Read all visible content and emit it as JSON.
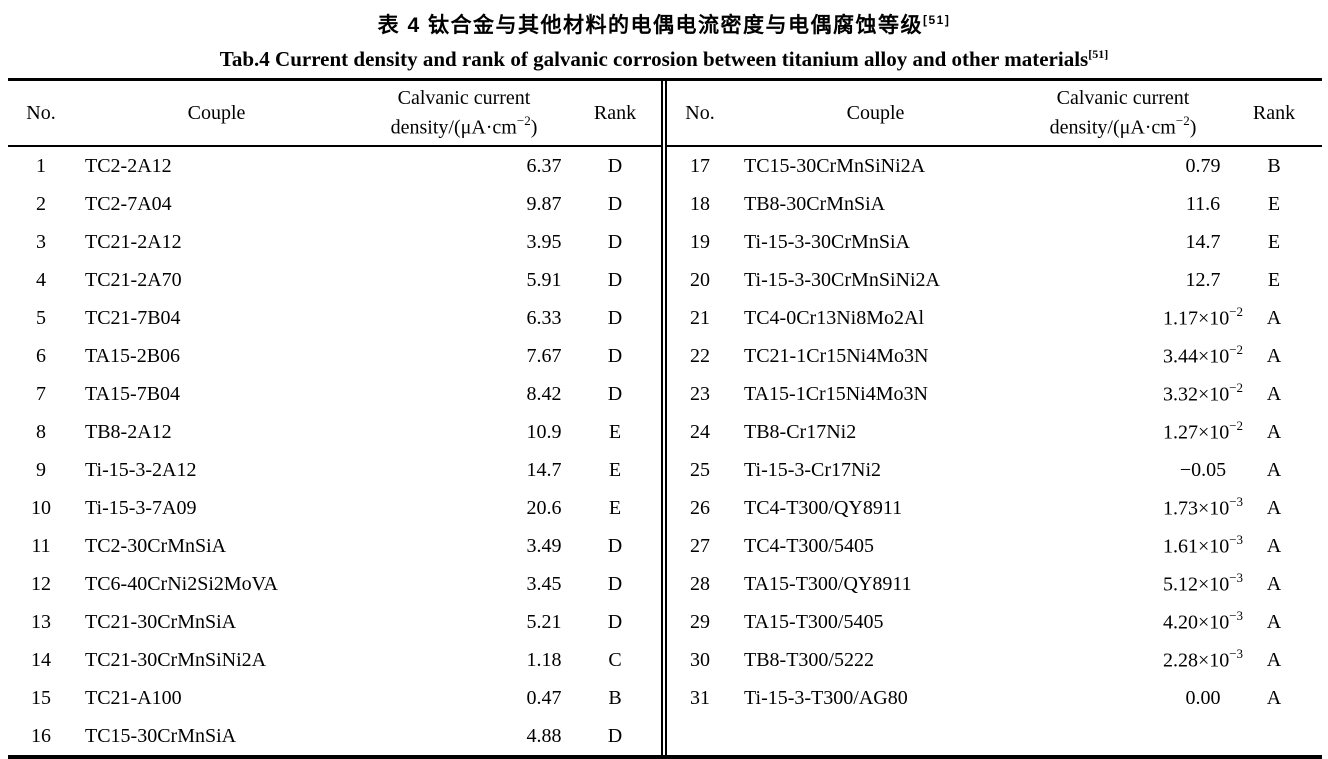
{
  "page": {
    "background": "#ffffff",
    "text_color": "#000000"
  },
  "title": {
    "chinese": "表 4  钛合金与其他材料的电偶电流密度与电偶腐蚀等级",
    "chinese_ref": "[51]",
    "english": "Tab.4 Current density and rank of galvanic corrosion between titanium alloy and other materials",
    "english_ref": "[51]"
  },
  "table": {
    "headers": {
      "no": "No.",
      "couple": "Couple",
      "density_line1": "Calvanic current",
      "density_line2_pre": "density/(μA·cm",
      "density_line2_sup": "−2",
      "density_line2_post": ")",
      "rank": "Rank"
    },
    "left_rows": [
      {
        "no": "1",
        "couple": "TC2-2A12",
        "density": "6.37",
        "exp": "",
        "rank": "D"
      },
      {
        "no": "2",
        "couple": "TC2-7A04",
        "density": "9.87",
        "exp": "",
        "rank": "D"
      },
      {
        "no": "3",
        "couple": "TC21-2A12",
        "density": "3.95",
        "exp": "",
        "rank": "D"
      },
      {
        "no": "4",
        "couple": "TC21-2A70",
        "density": "5.91",
        "exp": "",
        "rank": "D"
      },
      {
        "no": "5",
        "couple": "TC21-7B04",
        "density": "6.33",
        "exp": "",
        "rank": "D"
      },
      {
        "no": "6",
        "couple": "TA15-2B06",
        "density": "7.67",
        "exp": "",
        "rank": "D"
      },
      {
        "no": "7",
        "couple": "TA15-7B04",
        "density": "8.42",
        "exp": "",
        "rank": "D"
      },
      {
        "no": "8",
        "couple": "TB8-2A12",
        "density": "10.9",
        "exp": "",
        "rank": "E"
      },
      {
        "no": "9",
        "couple": "Ti-15-3-2A12",
        "density": "14.7",
        "exp": "",
        "rank": "E"
      },
      {
        "no": "10",
        "couple": "Ti-15-3-7A09",
        "density": "20.6",
        "exp": "",
        "rank": "E"
      },
      {
        "no": "11",
        "couple": "TC2-30CrMnSiA",
        "density": "3.49",
        "exp": "",
        "rank": "D"
      },
      {
        "no": "12",
        "couple": "TC6-40CrNi2Si2MoVA",
        "density": "3.45",
        "exp": "",
        "rank": "D"
      },
      {
        "no": "13",
        "couple": "TC21-30CrMnSiA",
        "density": "5.21",
        "exp": "",
        "rank": "D"
      },
      {
        "no": "14",
        "couple": "TC21-30CrMnSiNi2A",
        "density": "1.18",
        "exp": "",
        "rank": "C"
      },
      {
        "no": "15",
        "couple": "TC21-A100",
        "density": "0.47",
        "exp": "",
        "rank": "B"
      },
      {
        "no": "16",
        "couple": "TC15-30CrMnSiA",
        "density": "4.88",
        "exp": "",
        "rank": "D"
      }
    ],
    "right_rows": [
      {
        "no": "17",
        "couple": "TC15-30CrMnSiNi2A",
        "density": "0.79",
        "exp": "",
        "rank": "B"
      },
      {
        "no": "18",
        "couple": "TB8-30CrMnSiA",
        "density": "11.6",
        "exp": "",
        "rank": "E"
      },
      {
        "no": "19",
        "couple": "Ti-15-3-30CrMnSiA",
        "density": "14.7",
        "exp": "",
        "rank": "E"
      },
      {
        "no": "20",
        "couple": "Ti-15-3-30CrMnSiNi2A",
        "density": "12.7",
        "exp": "",
        "rank": "E"
      },
      {
        "no": "21",
        "couple": "TC4-0Cr13Ni8Mo2Al",
        "density": "1.17×10",
        "exp": "−2",
        "rank": "A"
      },
      {
        "no": "22",
        "couple": "TC21-1Cr15Ni4Mo3N",
        "density": "3.44×10",
        "exp": "−2",
        "rank": "A"
      },
      {
        "no": "23",
        "couple": "TA15-1Cr15Ni4Mo3N",
        "density": "3.32×10",
        "exp": "−2",
        "rank": "A"
      },
      {
        "no": "24",
        "couple": "TB8-Cr17Ni2",
        "density": "1.27×10",
        "exp": "−2",
        "rank": "A"
      },
      {
        "no": "25",
        "couple": "Ti-15-3-Cr17Ni2",
        "density": "−0.05",
        "exp": "",
        "rank": "A"
      },
      {
        "no": "26",
        "couple": "TC4-T300/QY8911",
        "density": "1.73×10",
        "exp": "−3",
        "rank": "A"
      },
      {
        "no": "27",
        "couple": "TC4-T300/5405",
        "density": "1.61×10",
        "exp": "−3",
        "rank": "A"
      },
      {
        "no": "28",
        "couple": "TA15-T300/QY8911",
        "density": "5.12×10",
        "exp": "−3",
        "rank": "A"
      },
      {
        "no": "29",
        "couple": "TA15-T300/5405",
        "density": "4.20×10",
        "exp": "−3",
        "rank": "A"
      },
      {
        "no": "30",
        "couple": "TB8-T300/5222",
        "density": "2.28×10",
        "exp": "−3",
        "rank": "A"
      },
      {
        "no": "31",
        "couple": "Ti-15-3-T300/AG80",
        "density": "0.00",
        "exp": "",
        "rank": "A"
      }
    ]
  }
}
